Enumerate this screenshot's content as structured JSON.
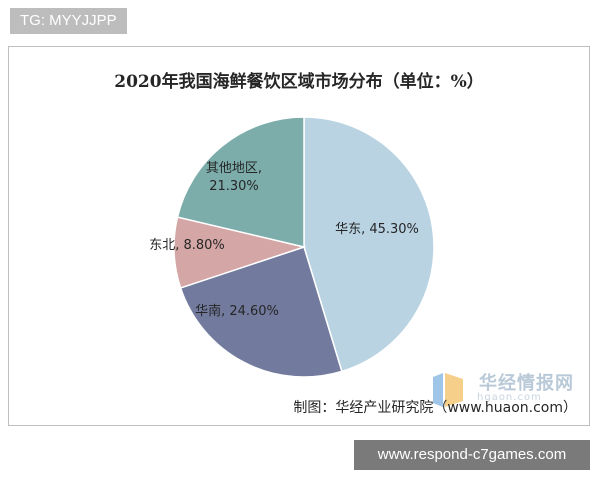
{
  "tag": "TG: MYYJJPP",
  "site_footer": "www.respond-c7games.com",
  "source_note": "制图：华经产业研究院（www.huaon.com）",
  "watermark": {
    "name": "华经情报网",
    "domain": "hgaon.com",
    "colors": [
      "#9fc5e8",
      "#f6c26b"
    ]
  },
  "colors": {
    "slice_colors": [
      "#b9d3e3",
      "#727a9e",
      "#d4a6a5",
      "#7cadab"
    ],
    "slice_border": "#ffffff"
  },
  "chart_data": {
    "type": "pie",
    "title": "2020年我国海鲜餐饮区域市场分布（单位：%）",
    "slices": [
      {
        "label": "华东",
        "value": 45.3,
        "display": "华东, 45.30%"
      },
      {
        "label": "华南",
        "value": 24.6,
        "display": "华南, 24.60%"
      },
      {
        "label": "东北",
        "value": 8.8,
        "display": "东北, 8.80%"
      },
      {
        "label": "其他地区",
        "value": 21.3,
        "display_lines": [
          "其他地区,",
          "21.30%"
        ]
      }
    ],
    "start_direction": "top",
    "direction": "clockwise",
    "legend": "none"
  }
}
